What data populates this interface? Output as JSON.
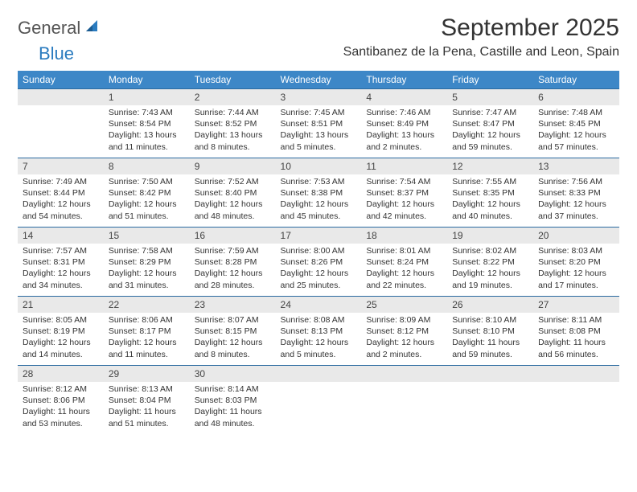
{
  "logo": {
    "general": "General",
    "blue": "Blue"
  },
  "title": "September 2025",
  "location": "Santibanez de la Pena, Castille and Leon, Spain",
  "colors": {
    "header_bg": "#3d87c7",
    "header_text": "#ffffff",
    "daynum_bg": "#e9e9e9",
    "row_border": "#2a6aa0",
    "logo_blue": "#2a7bbf",
    "logo_gray": "#555555"
  },
  "weekdays": [
    "Sunday",
    "Monday",
    "Tuesday",
    "Wednesday",
    "Thursday",
    "Friday",
    "Saturday"
  ],
  "weeks": [
    [
      {
        "num": "",
        "lines": []
      },
      {
        "num": "1",
        "lines": [
          "Sunrise: 7:43 AM",
          "Sunset: 8:54 PM",
          "Daylight: 13 hours",
          "and 11 minutes."
        ]
      },
      {
        "num": "2",
        "lines": [
          "Sunrise: 7:44 AM",
          "Sunset: 8:52 PM",
          "Daylight: 13 hours",
          "and 8 minutes."
        ]
      },
      {
        "num": "3",
        "lines": [
          "Sunrise: 7:45 AM",
          "Sunset: 8:51 PM",
          "Daylight: 13 hours",
          "and 5 minutes."
        ]
      },
      {
        "num": "4",
        "lines": [
          "Sunrise: 7:46 AM",
          "Sunset: 8:49 PM",
          "Daylight: 13 hours",
          "and 2 minutes."
        ]
      },
      {
        "num": "5",
        "lines": [
          "Sunrise: 7:47 AM",
          "Sunset: 8:47 PM",
          "Daylight: 12 hours",
          "and 59 minutes."
        ]
      },
      {
        "num": "6",
        "lines": [
          "Sunrise: 7:48 AM",
          "Sunset: 8:45 PM",
          "Daylight: 12 hours",
          "and 57 minutes."
        ]
      }
    ],
    [
      {
        "num": "7",
        "lines": [
          "Sunrise: 7:49 AM",
          "Sunset: 8:44 PM",
          "Daylight: 12 hours",
          "and 54 minutes."
        ]
      },
      {
        "num": "8",
        "lines": [
          "Sunrise: 7:50 AM",
          "Sunset: 8:42 PM",
          "Daylight: 12 hours",
          "and 51 minutes."
        ]
      },
      {
        "num": "9",
        "lines": [
          "Sunrise: 7:52 AM",
          "Sunset: 8:40 PM",
          "Daylight: 12 hours",
          "and 48 minutes."
        ]
      },
      {
        "num": "10",
        "lines": [
          "Sunrise: 7:53 AM",
          "Sunset: 8:38 PM",
          "Daylight: 12 hours",
          "and 45 minutes."
        ]
      },
      {
        "num": "11",
        "lines": [
          "Sunrise: 7:54 AM",
          "Sunset: 8:37 PM",
          "Daylight: 12 hours",
          "and 42 minutes."
        ]
      },
      {
        "num": "12",
        "lines": [
          "Sunrise: 7:55 AM",
          "Sunset: 8:35 PM",
          "Daylight: 12 hours",
          "and 40 minutes."
        ]
      },
      {
        "num": "13",
        "lines": [
          "Sunrise: 7:56 AM",
          "Sunset: 8:33 PM",
          "Daylight: 12 hours",
          "and 37 minutes."
        ]
      }
    ],
    [
      {
        "num": "14",
        "lines": [
          "Sunrise: 7:57 AM",
          "Sunset: 8:31 PM",
          "Daylight: 12 hours",
          "and 34 minutes."
        ]
      },
      {
        "num": "15",
        "lines": [
          "Sunrise: 7:58 AM",
          "Sunset: 8:29 PM",
          "Daylight: 12 hours",
          "and 31 minutes."
        ]
      },
      {
        "num": "16",
        "lines": [
          "Sunrise: 7:59 AM",
          "Sunset: 8:28 PM",
          "Daylight: 12 hours",
          "and 28 minutes."
        ]
      },
      {
        "num": "17",
        "lines": [
          "Sunrise: 8:00 AM",
          "Sunset: 8:26 PM",
          "Daylight: 12 hours",
          "and 25 minutes."
        ]
      },
      {
        "num": "18",
        "lines": [
          "Sunrise: 8:01 AM",
          "Sunset: 8:24 PM",
          "Daylight: 12 hours",
          "and 22 minutes."
        ]
      },
      {
        "num": "19",
        "lines": [
          "Sunrise: 8:02 AM",
          "Sunset: 8:22 PM",
          "Daylight: 12 hours",
          "and 19 minutes."
        ]
      },
      {
        "num": "20",
        "lines": [
          "Sunrise: 8:03 AM",
          "Sunset: 8:20 PM",
          "Daylight: 12 hours",
          "and 17 minutes."
        ]
      }
    ],
    [
      {
        "num": "21",
        "lines": [
          "Sunrise: 8:05 AM",
          "Sunset: 8:19 PM",
          "Daylight: 12 hours",
          "and 14 minutes."
        ]
      },
      {
        "num": "22",
        "lines": [
          "Sunrise: 8:06 AM",
          "Sunset: 8:17 PM",
          "Daylight: 12 hours",
          "and 11 minutes."
        ]
      },
      {
        "num": "23",
        "lines": [
          "Sunrise: 8:07 AM",
          "Sunset: 8:15 PM",
          "Daylight: 12 hours",
          "and 8 minutes."
        ]
      },
      {
        "num": "24",
        "lines": [
          "Sunrise: 8:08 AM",
          "Sunset: 8:13 PM",
          "Daylight: 12 hours",
          "and 5 minutes."
        ]
      },
      {
        "num": "25",
        "lines": [
          "Sunrise: 8:09 AM",
          "Sunset: 8:12 PM",
          "Daylight: 12 hours",
          "and 2 minutes."
        ]
      },
      {
        "num": "26",
        "lines": [
          "Sunrise: 8:10 AM",
          "Sunset: 8:10 PM",
          "Daylight: 11 hours",
          "and 59 minutes."
        ]
      },
      {
        "num": "27",
        "lines": [
          "Sunrise: 8:11 AM",
          "Sunset: 8:08 PM",
          "Daylight: 11 hours",
          "and 56 minutes."
        ]
      }
    ],
    [
      {
        "num": "28",
        "lines": [
          "Sunrise: 8:12 AM",
          "Sunset: 8:06 PM",
          "Daylight: 11 hours",
          "and 53 minutes."
        ]
      },
      {
        "num": "29",
        "lines": [
          "Sunrise: 8:13 AM",
          "Sunset: 8:04 PM",
          "Daylight: 11 hours",
          "and 51 minutes."
        ]
      },
      {
        "num": "30",
        "lines": [
          "Sunrise: 8:14 AM",
          "Sunset: 8:03 PM",
          "Daylight: 11 hours",
          "and 48 minutes."
        ]
      },
      {
        "num": "",
        "lines": []
      },
      {
        "num": "",
        "lines": []
      },
      {
        "num": "",
        "lines": []
      },
      {
        "num": "",
        "lines": []
      }
    ]
  ]
}
